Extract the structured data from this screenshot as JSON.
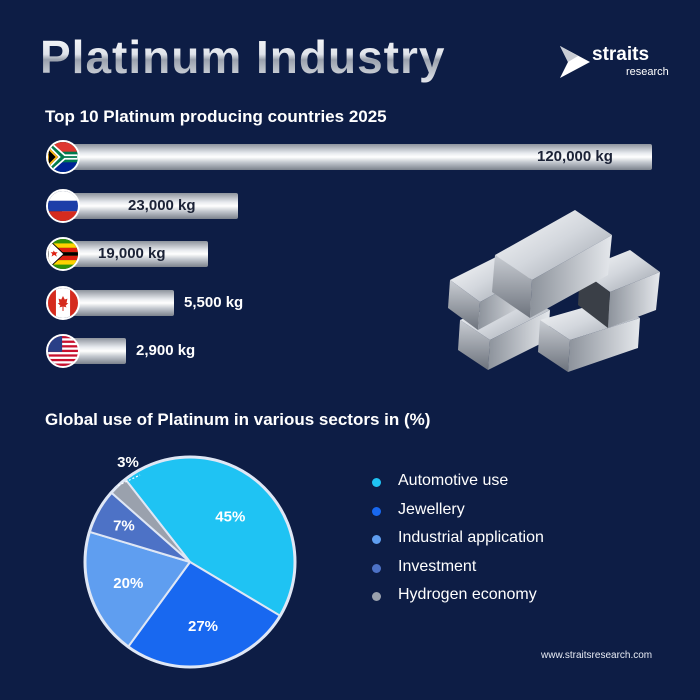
{
  "title": "Platinum Industry",
  "brand": {
    "name": "straits",
    "sub": "research"
  },
  "footer": "www.straitsresearch.com",
  "colors": {
    "background": "#0d1d45",
    "bar": "#d8dce2"
  },
  "chart_data": [
    {
      "type": "bar",
      "orientation": "horizontal",
      "title": "Top 10 Platinum producing countries 2025",
      "categories": [
        "South Africa",
        "Russia",
        "Zimbabwe",
        "Canada",
        "United States"
      ],
      "values": [
        120000,
        23000,
        19000,
        5500,
        2900
      ],
      "labels": [
        "120,000 kg",
        "23,000 kg",
        "19,000 kg",
        "5,500 kg",
        "2,900 kg"
      ],
      "flags": [
        "south-africa-flag-icon",
        "russia-flag-icon",
        "zimbabwe-flag-icon",
        "canada-flag-icon",
        "usa-flag-icon"
      ],
      "xlim": [
        0,
        120000
      ]
    },
    {
      "type": "pie",
      "title": "Global use of Platinum in various sectors in (%)",
      "legend_position": "right",
      "slices": [
        {
          "name": "Automotive use",
          "value": 45,
          "label": "45%",
          "color": "#1fc3f3"
        },
        {
          "name": "Jewellery",
          "value": 27,
          "label": "27%",
          "color": "#1868f0"
        },
        {
          "name": "Industrial application",
          "value": 20,
          "label": "20%",
          "color": "#5f9ef0"
        },
        {
          "name": "Investment",
          "value": 7,
          "label": "7%",
          "color": "#4d72c6"
        },
        {
          "name": "Hydrogen economy",
          "value": 3,
          "label": "3%",
          "color": "#9aa1ad"
        }
      ]
    }
  ]
}
